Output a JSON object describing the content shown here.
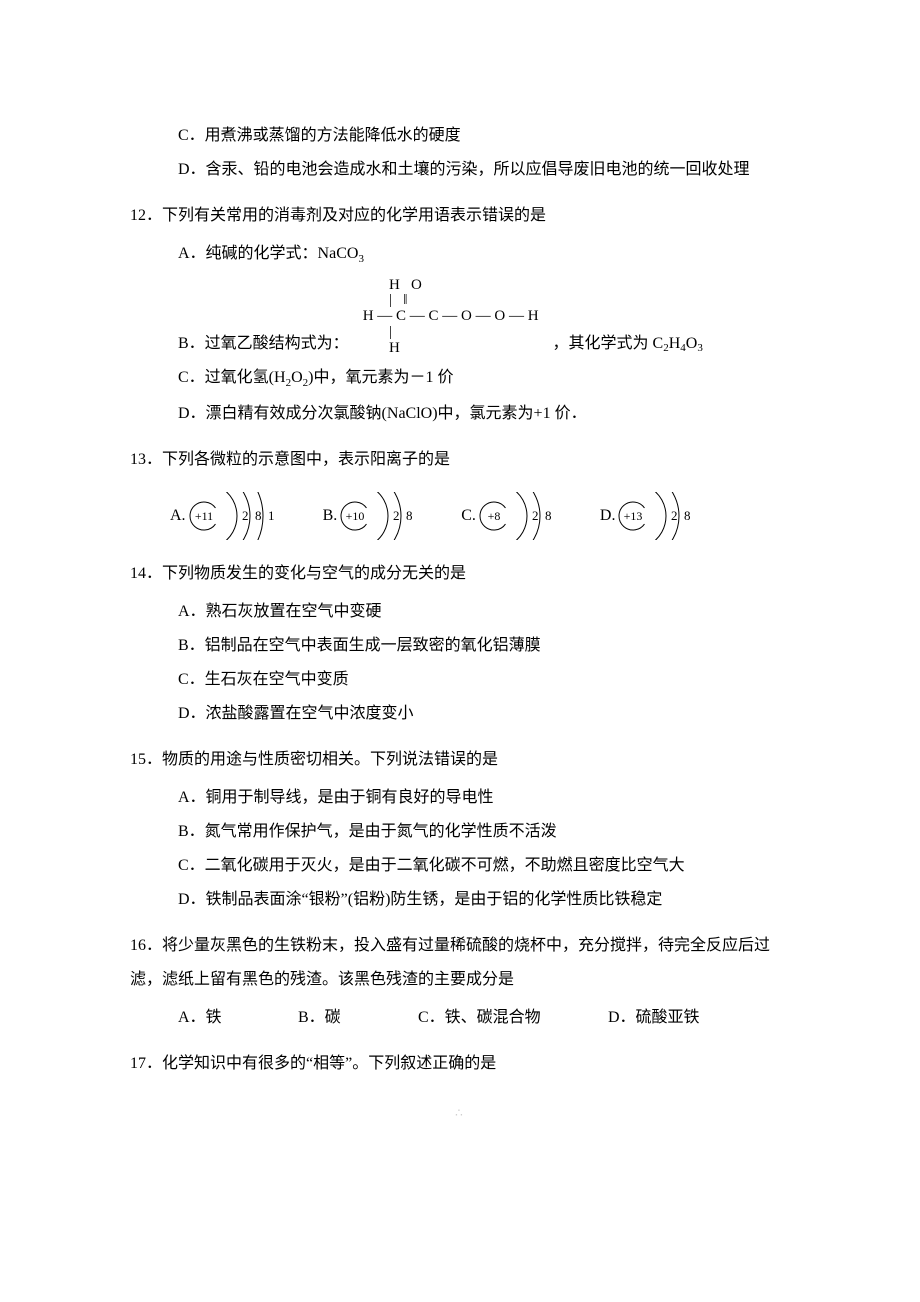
{
  "q11": {
    "optC": "C．用煮沸或蒸馏的方法能降低水的硬度",
    "optD": "D．含汞、铅的电池会造成水和土壤的污染，所以应倡导废旧电池的统一回收处理"
  },
  "q12": {
    "stem": "12．下列有关常用的消毒剂及对应的化学用语表示错误的是",
    "optA_pre": "A．纯碱的化学式：NaCO",
    "optA_sub": "3",
    "optB_pre": "B．过氧乙酸结构式为：",
    "optB_post": "，其化学式为 C",
    "optB_s1": "2",
    "optB_mid1": "H",
    "optB_s2": "4",
    "optB_mid2": "O",
    "optB_s3": "3",
    "struct_r1": "       H   O",
    "struct_r2": "       |   ‖",
    "struct_r3": "H — C — C — O — O — H",
    "struct_r4": "       |",
    "struct_r5": "       H",
    "optC_pre": "C．过氧化氢(H",
    "optC_s1": "2",
    "optC_mid": "O",
    "optC_s2": "2",
    "optC_post": ")中，氧元素为－1 价",
    "optD": "D．漂白精有效成分次氯酸钠(NaClO)中，氯元素为+1 价．"
  },
  "q13": {
    "stem": "13．下列各微粒的示意图中，表示阳离子的是",
    "atoms": [
      {
        "label": "A.",
        "nucleus": "+11",
        "shells": [
          "2",
          "8",
          "1"
        ]
      },
      {
        "label": "B.",
        "nucleus": "+10",
        "shells": [
          "2",
          "8"
        ]
      },
      {
        "label": "C.",
        "nucleus": "+8",
        "shells": [
          "2",
          "8"
        ]
      },
      {
        "label": "D.",
        "nucleus": "+13",
        "shells": [
          "2",
          "8"
        ]
      }
    ],
    "colors": {
      "stroke": "#000000",
      "text": "#000000"
    }
  },
  "q14": {
    "stem": "14．下列物质发生的变化与空气的成分无关的是",
    "optA": "A．熟石灰放置在空气中变硬",
    "optB": "B．铝制品在空气中表面生成一层致密的氧化铝薄膜",
    "optC": "C．生石灰在空气中变质",
    "optD": "D．浓盐酸露置在空气中浓度变小"
  },
  "q15": {
    "stem": "15．物质的用途与性质密切相关。下列说法错误的是",
    "optA": "A．铜用于制导线，是由于铜有良好的导电性",
    "optB": "B．氮气常用作保护气，是由于氮气的化学性质不活泼",
    "optC": "C．二氧化碳用于灭火，是由于二氧化碳不可燃，不助燃且密度比空气大",
    "optD": "D．铁制品表面涂“银粉”(铝粉)防生锈，是由于铝的化学性质比铁稳定"
  },
  "q16": {
    "stem1": "16．将少量灰黑色的生铁粉末，投入盛有过量稀硫酸的烧杯中，充分搅拌，待完全反应后过",
    "stem2": "滤，滤纸上留有黑色的残渣。该黑色残渣的主要成分是",
    "optA": "A．铁",
    "optB": "B．碳",
    "optC": "C．铁、碳混合物",
    "optD": "D．硫酸亚铁",
    "widths": {
      "a": 120,
      "b": 120,
      "c": 190,
      "d": 140
    }
  },
  "q17": {
    "stem": "17．化学知识中有很多的“相等”。下列叙述正确的是"
  },
  "footer": "∴"
}
